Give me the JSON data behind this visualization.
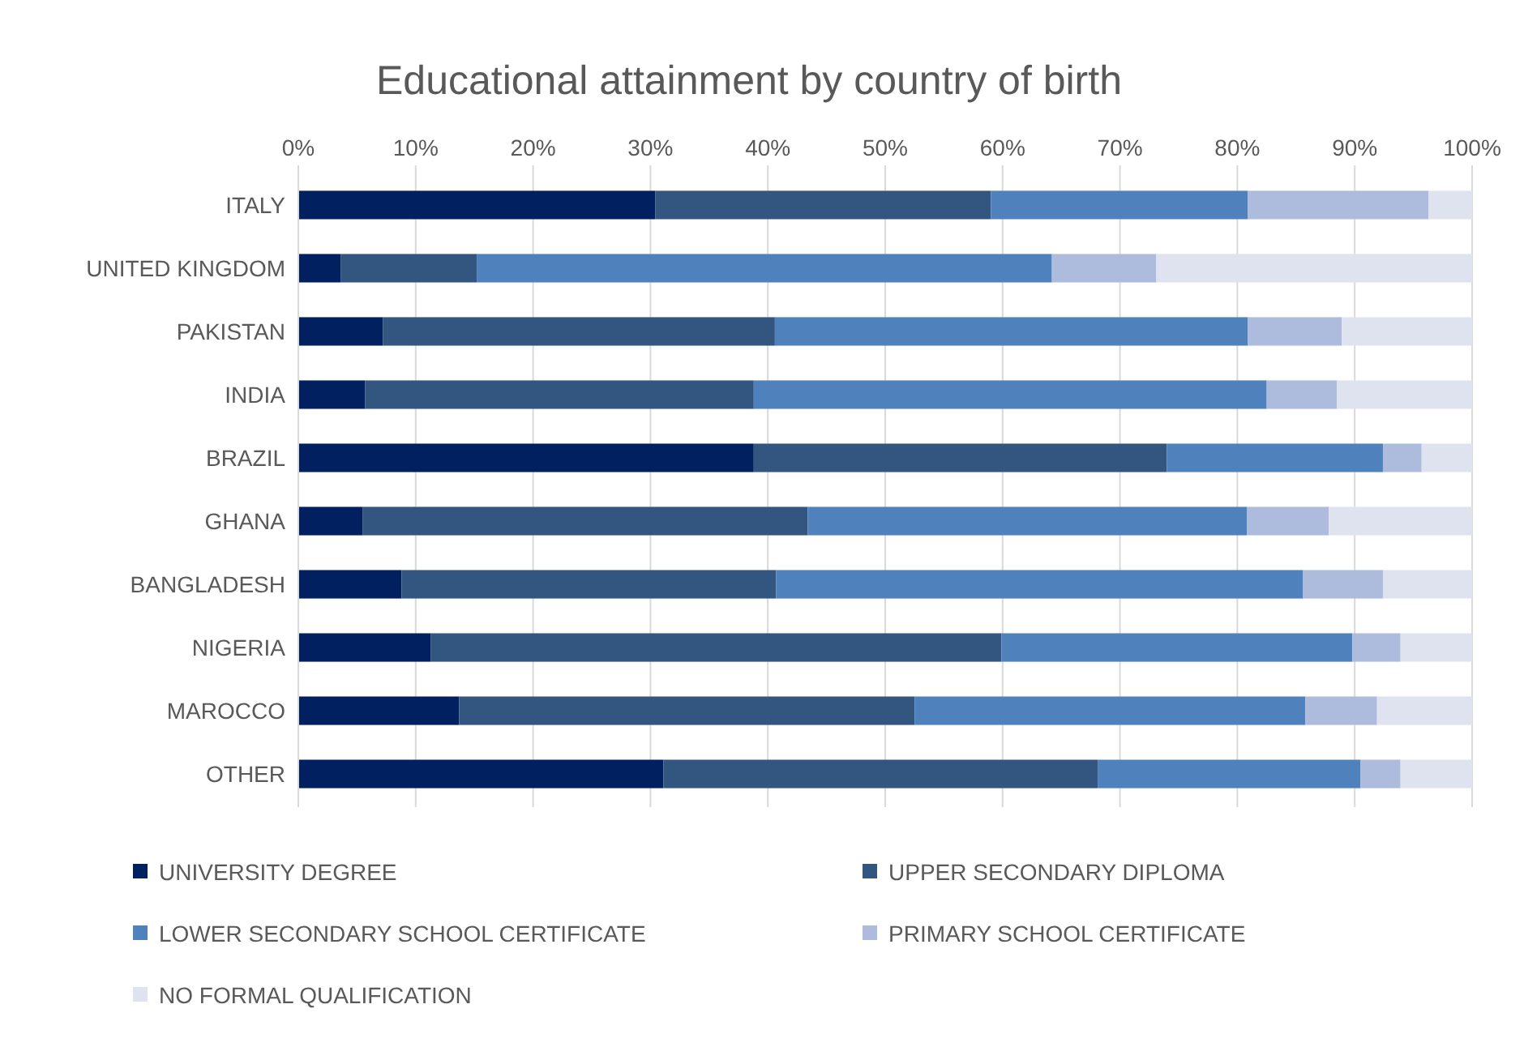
{
  "chart_data": {
    "type": "bar",
    "orientation": "horizontal",
    "stacked": true,
    "title": "Educational attainment by country of birth",
    "categories": [
      "ITALY",
      "UNITED KINGDOM",
      "PAKISTAN",
      "INDIA",
      "BRAZIL",
      "GHANA",
      "BANGLADESH",
      "NIGERIA",
      "MAROCCO",
      "OTHER"
    ],
    "series": [
      {
        "name": "UNIVERSITY DEGREE",
        "color": "#002060",
        "values": [
          30.4,
          3.6,
          7.2,
          5.7,
          38.8,
          5.5,
          8.8,
          11.3,
          13.7,
          31.1
        ]
      },
      {
        "name": "UPPER SECONDARY DIPLOMA",
        "color": "#335680",
        "values": [
          28.6,
          11.6,
          33.4,
          33.1,
          35.2,
          37.9,
          31.9,
          48.6,
          38.8,
          37.0
        ]
      },
      {
        "name": "LOWER SECONDARY SCHOOL CERTIFICATE",
        "color": "#4f81bd",
        "values": [
          21.9,
          49.0,
          40.3,
          43.7,
          18.4,
          37.4,
          44.9,
          29.9,
          33.3,
          22.4
        ]
      },
      {
        "name": "PRIMARY SCHOOL CERTIFICATE",
        "color": "#adbcdd",
        "values": [
          15.4,
          8.9,
          8.0,
          6.0,
          3.3,
          7.0,
          6.8,
          4.1,
          6.1,
          3.4
        ]
      },
      {
        "name": "NO FORMAL QUALIFICATION",
        "color": "#dfe3ef",
        "values": [
          3.7,
          26.9,
          11.1,
          11.5,
          4.3,
          12.2,
          7.6,
          6.1,
          8.1,
          6.1
        ]
      }
    ],
    "xlim": [
      0,
      100
    ],
    "xticks": [
      {
        "value": 0,
        "label": "0%"
      },
      {
        "value": 10,
        "label": "10%"
      },
      {
        "value": 20,
        "label": "20%"
      },
      {
        "value": 30,
        "label": "30%"
      },
      {
        "value": 40,
        "label": "40%"
      },
      {
        "value": 50,
        "label": "50%"
      },
      {
        "value": 60,
        "label": "60%"
      },
      {
        "value": 70,
        "label": "70%"
      },
      {
        "value": 80,
        "label": "80%"
      },
      {
        "value": 90,
        "label": "90%"
      },
      {
        "value": 100,
        "label": "100%"
      }
    ],
    "grid": "x",
    "legend": "bottom"
  }
}
